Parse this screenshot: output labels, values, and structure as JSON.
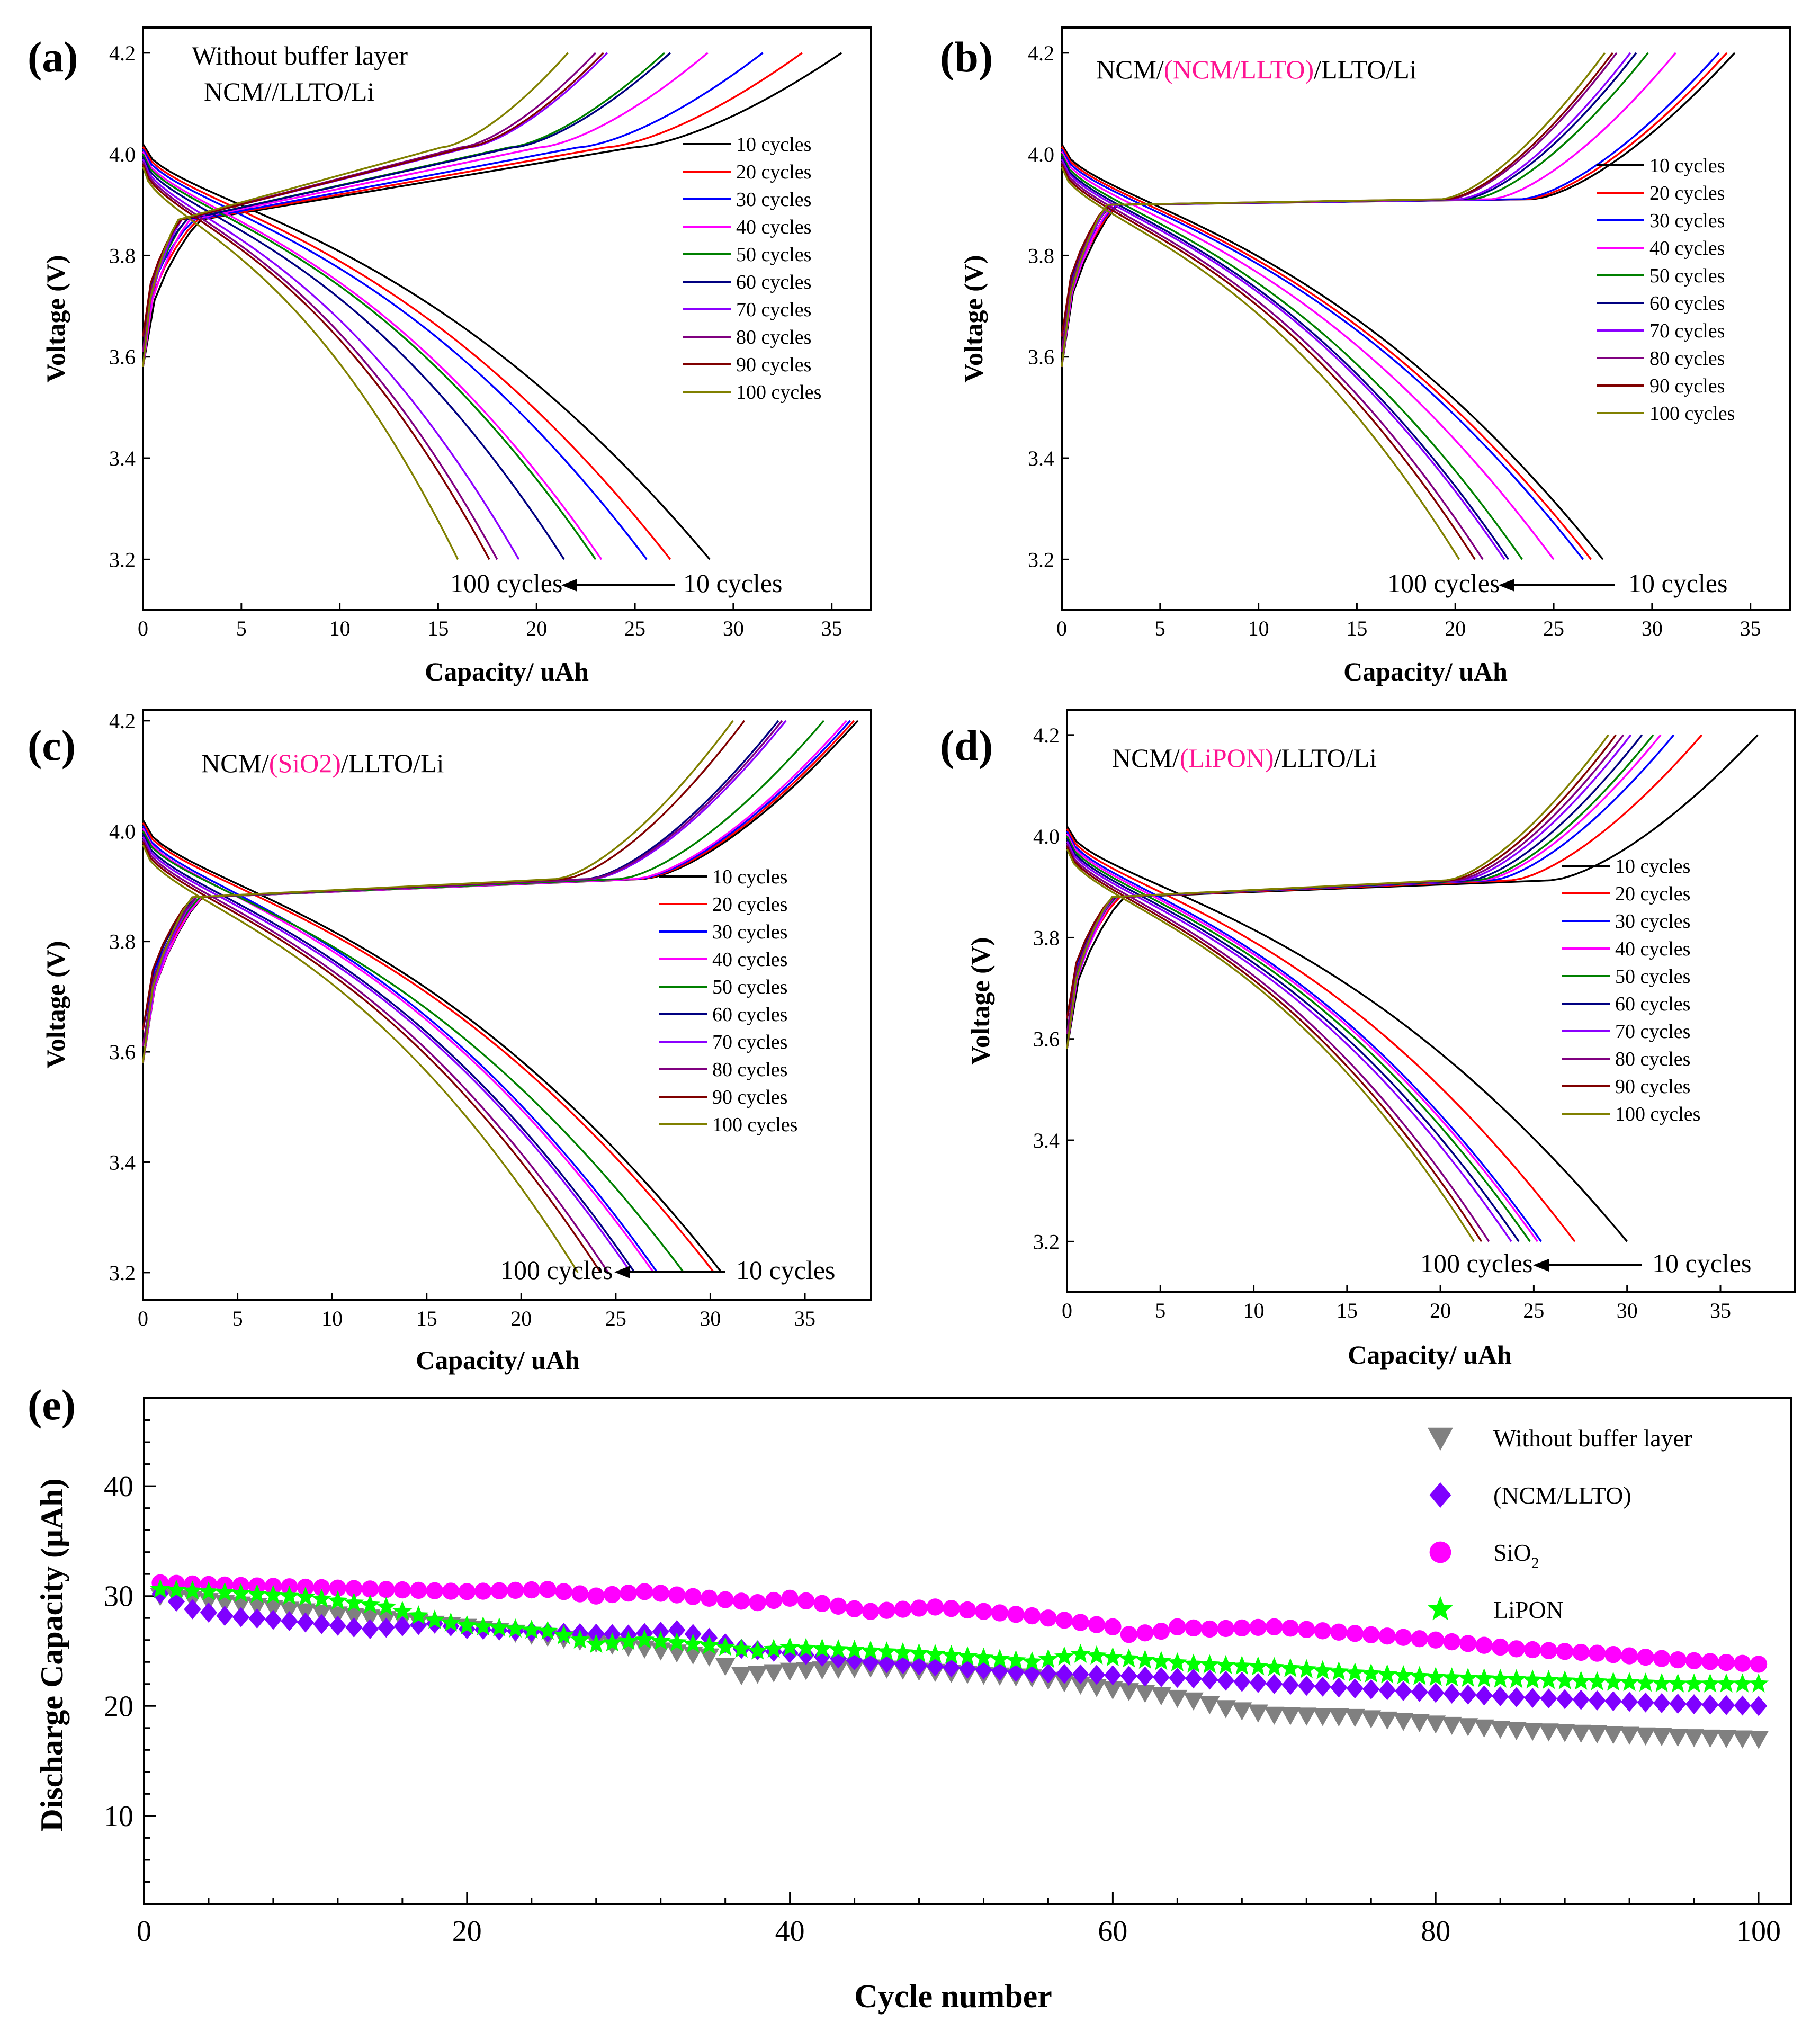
{
  "colors": {
    "c10": "#000000",
    "c20": "#ff0000",
    "c30": "#0000ff",
    "c40": "#ff00ff",
    "c50": "#008000",
    "c60": "#000080",
    "c70": "#8b00ff",
    "c80": "#800080",
    "c90": "#800000",
    "c100": "#808000",
    "label_accent": "#ff1493",
    "without_buffer": "#808080",
    "ncm_llto": "#7f00ff",
    "sio2": "#ff00ff",
    "lipon": "#00ff00"
  },
  "panels": [
    {
      "label": "(a)",
      "title_line1": "Without buffer layer",
      "title_line2": "NCM//LLTO/Li",
      "xlabel": "Capacity/ uAh",
      "ylabel": "Voltage (V)",
      "arrow_from": "10 cycles",
      "arrow_to": "100 cycles",
      "chart_data": {
        "type": "line",
        "xlim": [
          0,
          37
        ],
        "ylim": [
          3.1,
          4.25
        ],
        "x_ticks": [
          0,
          5,
          10,
          15,
          20,
          25,
          30,
          35
        ],
        "y_ticks": [
          3.2,
          3.4,
          3.6,
          3.8,
          4.0,
          4.2
        ],
        "legend": [
          "10 cycles",
          "20 cycles",
          "30 cycles",
          "40 cycles",
          "50 cycles",
          "60 cycles",
          "70 cycles",
          "80 cycles",
          "90 cycles",
          "100 cycles"
        ],
        "charge_end_capacity": [
          35.5,
          33.5,
          31.5,
          28.7,
          26.5,
          26.8,
          23.6,
          23.0,
          23.4,
          21.6
        ],
        "discharge_end_capacity": [
          28.8,
          26.8,
          25.6,
          23.3,
          23.0,
          21.4,
          19.1,
          18.0,
          17.6,
          16.0
        ]
      }
    },
    {
      "label": "(b)",
      "title_prefix": "NCM/",
      "title_accent": "(NCM/LLTO)",
      "title_suffix": "/LLTO/Li",
      "xlabel": "Capacity/ uAh",
      "ylabel": "Voltage (V)",
      "arrow_from": "10 cycles",
      "arrow_to": "100 cycles",
      "chart_data": {
        "type": "line",
        "xlim": [
          0,
          37
        ],
        "ylim": [
          3.1,
          4.25
        ],
        "x_ticks": [
          0,
          5,
          10,
          15,
          20,
          25,
          30,
          35
        ],
        "y_ticks": [
          3.2,
          3.4,
          3.6,
          3.8,
          4.0,
          4.2
        ],
        "legend": [
          "10 cycles",
          "20 cycles",
          "30 cycles",
          "40 cycles",
          "50 cycles",
          "60 cycles",
          "70 cycles",
          "80 cycles",
          "90 cycles",
          "100 cycles"
        ],
        "charge_end_capacity": [
          34.2,
          33.8,
          33.4,
          31.2,
          29.8,
          29.2,
          28.9,
          28.2,
          28.0,
          27.6
        ],
        "discharge_end_capacity": [
          27.5,
          26.9,
          26.5,
          25.0,
          23.4,
          22.7,
          22.5,
          21.4,
          21.0,
          20.2
        ]
      }
    },
    {
      "label": "(c)",
      "title_prefix": "NCM/",
      "title_accent": "(SiO2)",
      "title_suffix": "/LLTO/Li",
      "xlabel": "Capacity/ uAh",
      "ylabel": "Voltage (V)",
      "arrow_from": "10 cycles",
      "arrow_to": "100 cycles",
      "chart_data": {
        "type": "line",
        "xlim": [
          0,
          38.5
        ],
        "ylim": [
          3.15,
          4.22
        ],
        "x_ticks": [
          0,
          5,
          10,
          15,
          20,
          25,
          30,
          35
        ],
        "y_ticks": [
          3.2,
          3.4,
          3.6,
          3.8,
          4.0,
          4.2
        ],
        "legend": [
          "10 cycles",
          "20 cycles",
          "30 cycles",
          "40 cycles",
          "50 cycles",
          "60 cycles",
          "70 cycles",
          "80 cycles",
          "90 cycles",
          "100 cycles"
        ],
        "charge_end_capacity": [
          37.8,
          37.6,
          37.4,
          37.2,
          36.0,
          33.6,
          34.0,
          33.8,
          31.8,
          31.2
        ],
        "discharge_end_capacity": [
          30.6,
          30.2,
          27.2,
          27.0,
          28.6,
          26.0,
          25.8,
          24.6,
          24.2,
          23.0
        ]
      }
    },
    {
      "label": "(d)",
      "title_prefix": "NCM/",
      "title_accent": "(LiPON)",
      "title_suffix": "/LLTO/Li",
      "xlabel": "Capacity/ uAh",
      "ylabel": "Voltage (V)",
      "arrow_from": "10 cycles",
      "arrow_to": "100 cycles",
      "chart_data": {
        "type": "line",
        "xlim": [
          0,
          39
        ],
        "ylim": [
          3.1,
          4.25
        ],
        "x_ticks": [
          0,
          5,
          10,
          15,
          20,
          25,
          30,
          35
        ],
        "y_ticks": [
          3.2,
          3.4,
          3.6,
          3.8,
          4.0,
          4.2
        ],
        "legend": [
          "10 cycles",
          "20 cycles",
          "30 cycles",
          "40 cycles",
          "50 cycles",
          "60 cycles",
          "70 cycles",
          "80 cycles",
          "90 cycles",
          "100 cycles"
        ],
        "charge_end_capacity": [
          37.0,
          34.0,
          32.5,
          31.8,
          31.4,
          30.8,
          30.2,
          29.8,
          29.4,
          29.0
        ],
        "discharge_end_capacity": [
          30.0,
          27.2,
          25.4,
          25.2,
          24.8,
          24.2,
          23.8,
          22.6,
          22.2,
          21.8
        ]
      }
    }
  ],
  "panel_e": {
    "label": "(e)",
    "xlabel": "Cycle number",
    "ylabel": "Discharge Capacity (μAh)",
    "legend": [
      "Without buffer layer",
      "(NCM/LLTO)",
      "SiO2",
      "LiPON"
    ],
    "chart_data": {
      "type": "scatter",
      "xlim": [
        0,
        102
      ],
      "ylim": [
        2,
        48
      ],
      "x_ticks": [
        0,
        20,
        40,
        60,
        80,
        100
      ],
      "y_ticks": [
        10,
        20,
        30,
        40
      ],
      "series": [
        {
          "name": "Without buffer layer",
          "marker": "triangle-down",
          "anchors": [
            [
              1,
              30.0
            ],
            [
              10,
              28.6
            ],
            [
              20,
              27.2
            ],
            [
              30,
              25.4
            ],
            [
              35,
              24.5
            ],
            [
              37,
              22.8
            ],
            [
              40,
              23.2
            ],
            [
              45,
              23.5
            ],
            [
              50,
              23.0
            ],
            [
              55,
              22.6
            ],
            [
              60,
              21.5
            ],
            [
              62,
              21.2
            ],
            [
              65,
              20.5
            ],
            [
              67,
              19.8
            ],
            [
              70,
              19.2
            ],
            [
              75,
              19.0
            ],
            [
              80,
              18.4
            ],
            [
              85,
              17.8
            ],
            [
              90,
              17.5
            ],
            [
              95,
              17.2
            ],
            [
              100,
              17.0
            ]
          ]
        },
        {
          "name": "(NCM/LLTO)",
          "marker": "diamond",
          "anchors": [
            [
              1,
              30.2
            ],
            [
              3,
              28.8
            ],
            [
              5,
              28.2
            ],
            [
              10,
              27.6
            ],
            [
              14,
              27.0
            ],
            [
              18,
              27.5
            ],
            [
              20,
              27.0
            ],
            [
              25,
              26.7
            ],
            [
              30,
              26.5
            ],
            [
              33,
              26.9
            ],
            [
              35,
              26.2
            ],
            [
              37,
              25.2
            ],
            [
              40,
              24.8
            ],
            [
              45,
              24.0
            ],
            [
              50,
              23.5
            ],
            [
              55,
              23.0
            ],
            [
              60,
              22.8
            ],
            [
              65,
              22.5
            ],
            [
              70,
              22.0
            ],
            [
              75,
              21.6
            ],
            [
              80,
              21.2
            ],
            [
              85,
              20.8
            ],
            [
              90,
              20.5
            ],
            [
              95,
              20.2
            ],
            [
              100,
              20.0
            ]
          ]
        },
        {
          "name": "SiO2",
          "marker": "circle",
          "anchors": [
            [
              1,
              31.2
            ],
            [
              5,
              31.0
            ],
            [
              10,
              30.8
            ],
            [
              15,
              30.6
            ],
            [
              20,
              30.4
            ],
            [
              25,
              30.6
            ],
            [
              28,
              30.0
            ],
            [
              31,
              30.4
            ],
            [
              35,
              29.8
            ],
            [
              38,
              29.4
            ],
            [
              40,
              29.8
            ],
            [
              45,
              28.6
            ],
            [
              49,
              29.0
            ],
            [
              52,
              28.6
            ],
            [
              55,
              28.2
            ],
            [
              58,
              27.6
            ],
            [
              60,
              27.2
            ],
            [
              61,
              26.5
            ],
            [
              63,
              26.8
            ],
            [
              64,
              27.2
            ],
            [
              66,
              27.0
            ],
            [
              70,
              27.2
            ],
            [
              75,
              26.6
            ],
            [
              80,
              26.0
            ],
            [
              85,
              25.2
            ],
            [
              90,
              24.8
            ],
            [
              95,
              24.2
            ],
            [
              100,
              23.8
            ]
          ]
        },
        {
          "name": "LiPON",
          "marker": "star",
          "anchors": [
            [
              1,
              30.6
            ],
            [
              5,
              30.3
            ],
            [
              10,
              29.9
            ],
            [
              15,
              29.0
            ],
            [
              18,
              27.8
            ],
            [
              20,
              27.3
            ],
            [
              25,
              26.8
            ],
            [
              28,
              25.6
            ],
            [
              31,
              26.0
            ],
            [
              35,
              25.5
            ],
            [
              38,
              25.0
            ],
            [
              40,
              25.3
            ],
            [
              45,
              25.0
            ],
            [
              50,
              24.6
            ],
            [
              55,
              24.0
            ],
            [
              58,
              24.7
            ],
            [
              60,
              24.4
            ],
            [
              65,
              23.8
            ],
            [
              70,
              23.5
            ],
            [
              75,
              23.0
            ],
            [
              80,
              22.6
            ],
            [
              85,
              22.4
            ],
            [
              90,
              22.2
            ],
            [
              95,
              22.0
            ],
            [
              100,
              22.0
            ]
          ]
        }
      ]
    }
  }
}
